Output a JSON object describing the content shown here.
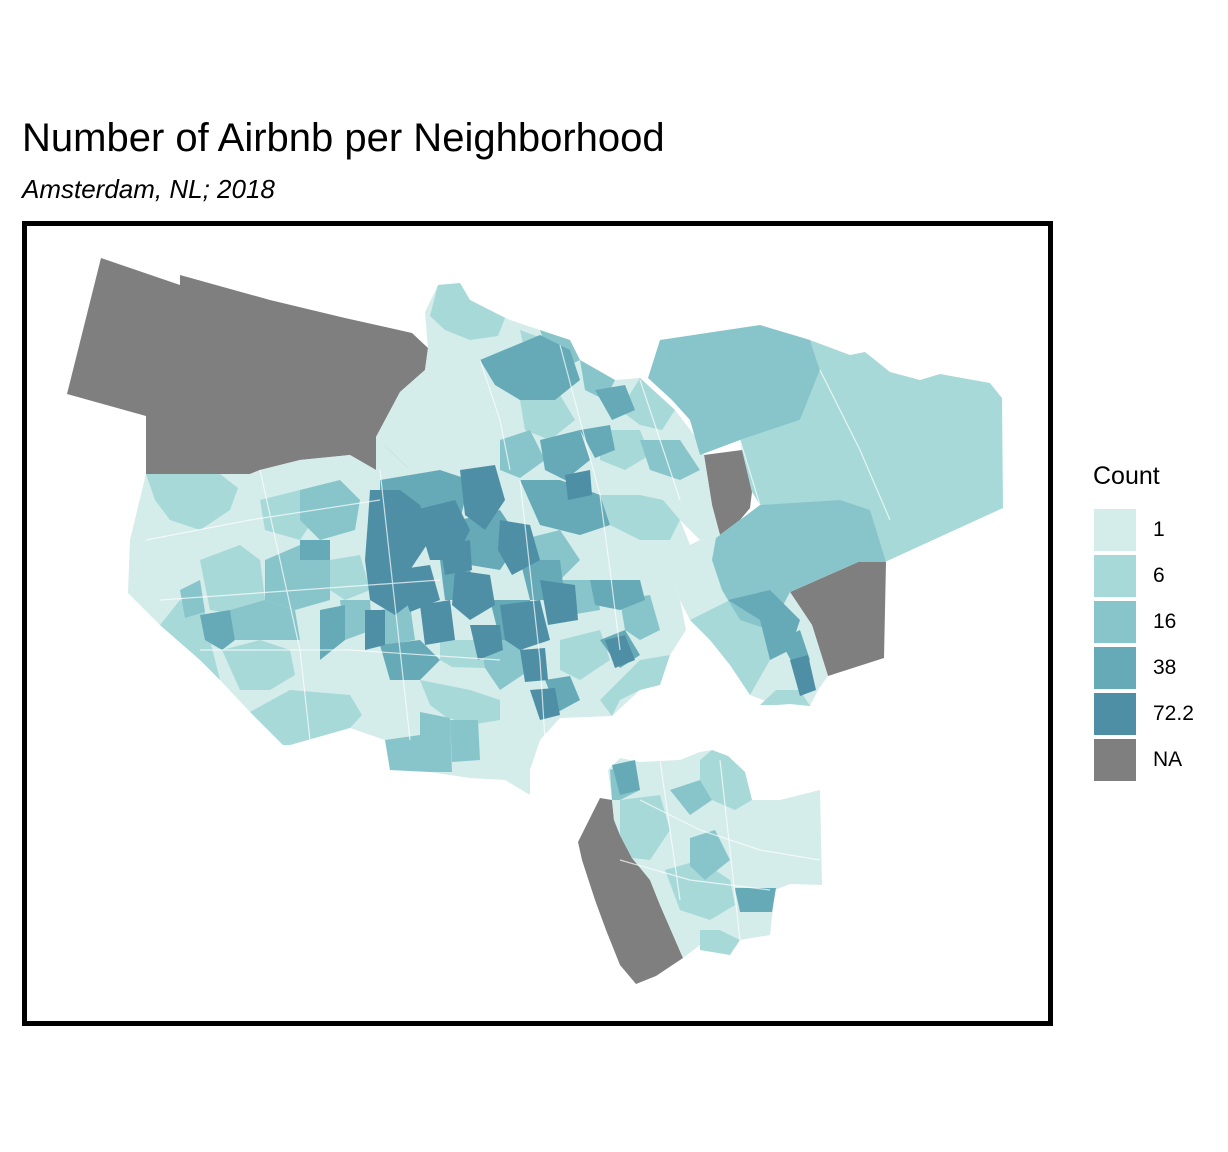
{
  "title": "Number of Airbnb per Neighborhood",
  "subtitle": "Amsterdam, NL; 2018",
  "legend": {
    "title": "Count",
    "items": [
      {
        "label": "1",
        "color": "#d4ecea"
      },
      {
        "label": "6",
        "color": "#a8d9d9"
      },
      {
        "label": "16",
        "color": "#88c5cb"
      },
      {
        "label": "38",
        "color": "#66aab8"
      },
      {
        "label": "72.2",
        "color": "#4f8fa6"
      },
      {
        "label": "NA",
        "color": "#7f7f7f"
      }
    ]
  },
  "map": {
    "type": "choropleth",
    "region": "Amsterdam neighborhoods",
    "color_scale": [
      "#d4ecea",
      "#a8d9d9",
      "#88c5cb",
      "#66aab8",
      "#4f8fa6"
    ],
    "na_color": "#7f7f7f"
  }
}
